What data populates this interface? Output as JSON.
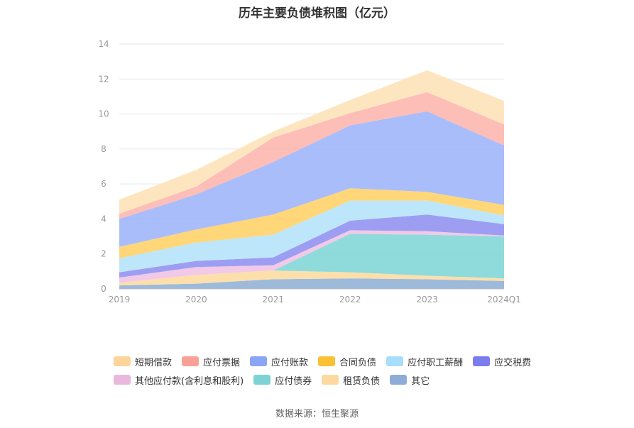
{
  "chart_data": {
    "type": "area",
    "stacked": true,
    "title": "历年主要负债堆积图（亿元）",
    "source": "数据来源：恒生聚源",
    "categories": [
      "2019",
      "2020",
      "2021",
      "2022",
      "2023",
      "2024Q1"
    ],
    "ylim": [
      0,
      14
    ],
    "yticks": [
      0,
      2,
      4,
      6,
      8,
      10,
      12,
      14
    ],
    "grid": true,
    "legend_position": "bottom",
    "series": [
      {
        "name": "其它",
        "color": "#8fb0d6",
        "values": [
          0.2,
          0.3,
          0.55,
          0.6,
          0.55,
          0.45
        ]
      },
      {
        "name": "租赁负债",
        "color": "#fddba0",
        "values": [
          0.15,
          0.5,
          0.5,
          0.35,
          0.2,
          0.15
        ]
      },
      {
        "name": "应付债券",
        "color": "#7fd6d6",
        "values": [
          0,
          0,
          0,
          2.2,
          2.35,
          2.4
        ]
      },
      {
        "name": "其他应付款(含利息和股利)",
        "color": "#f0c2e4",
        "values": [
          0.3,
          0.45,
          0.3,
          0.2,
          0.2,
          0.05
        ]
      },
      {
        "name": "应交税费",
        "color": "#8f91f0",
        "values": [
          0.3,
          0.35,
          0.45,
          0.55,
          0.95,
          0.65
        ]
      },
      {
        "name": "应付职工薪酬",
        "color": "#b4e2fb",
        "values": [
          0.8,
          1.05,
          1.3,
          1.15,
          0.8,
          0.5
        ]
      },
      {
        "name": "合同负债",
        "color": "#ffd166",
        "values": [
          0.65,
          0.75,
          1.15,
          0.7,
          0.5,
          0.6
        ]
      },
      {
        "name": "应付账款",
        "color": "#9db4fb",
        "values": [
          1.6,
          2.0,
          3.0,
          3.6,
          4.6,
          3.4
        ]
      },
      {
        "name": "应付票据",
        "color": "#fdb5ad",
        "values": [
          0.3,
          0.45,
          1.4,
          0.7,
          1.1,
          1.2
        ]
      },
      {
        "name": "短期借款",
        "color": "#fde3b6",
        "values": [
          0.8,
          0.95,
          0.35,
          0.75,
          1.25,
          1.35
        ]
      }
    ],
    "legend_order": [
      "短期借款",
      "应付票据",
      "应付账款",
      "合同负债",
      "应付职工薪酬",
      "应交税费",
      "其他应付款(含利息和股利)",
      "应付债券",
      "租赁负债",
      "其它"
    ],
    "legend_colors": {
      "短期借款": "#fdd49a",
      "应付票据": "#f9a199",
      "应付账款": "#8aa5f6",
      "合同负债": "#fbc135",
      "应付职工薪酬": "#a8defb",
      "应交税费": "#7b7ced",
      "其他应付款(含利息和股利)": "#eab8dc",
      "应付债券": "#7dd3d3",
      "租赁负债": "#fdd9a0",
      "其它": "#8eacd6"
    }
  }
}
